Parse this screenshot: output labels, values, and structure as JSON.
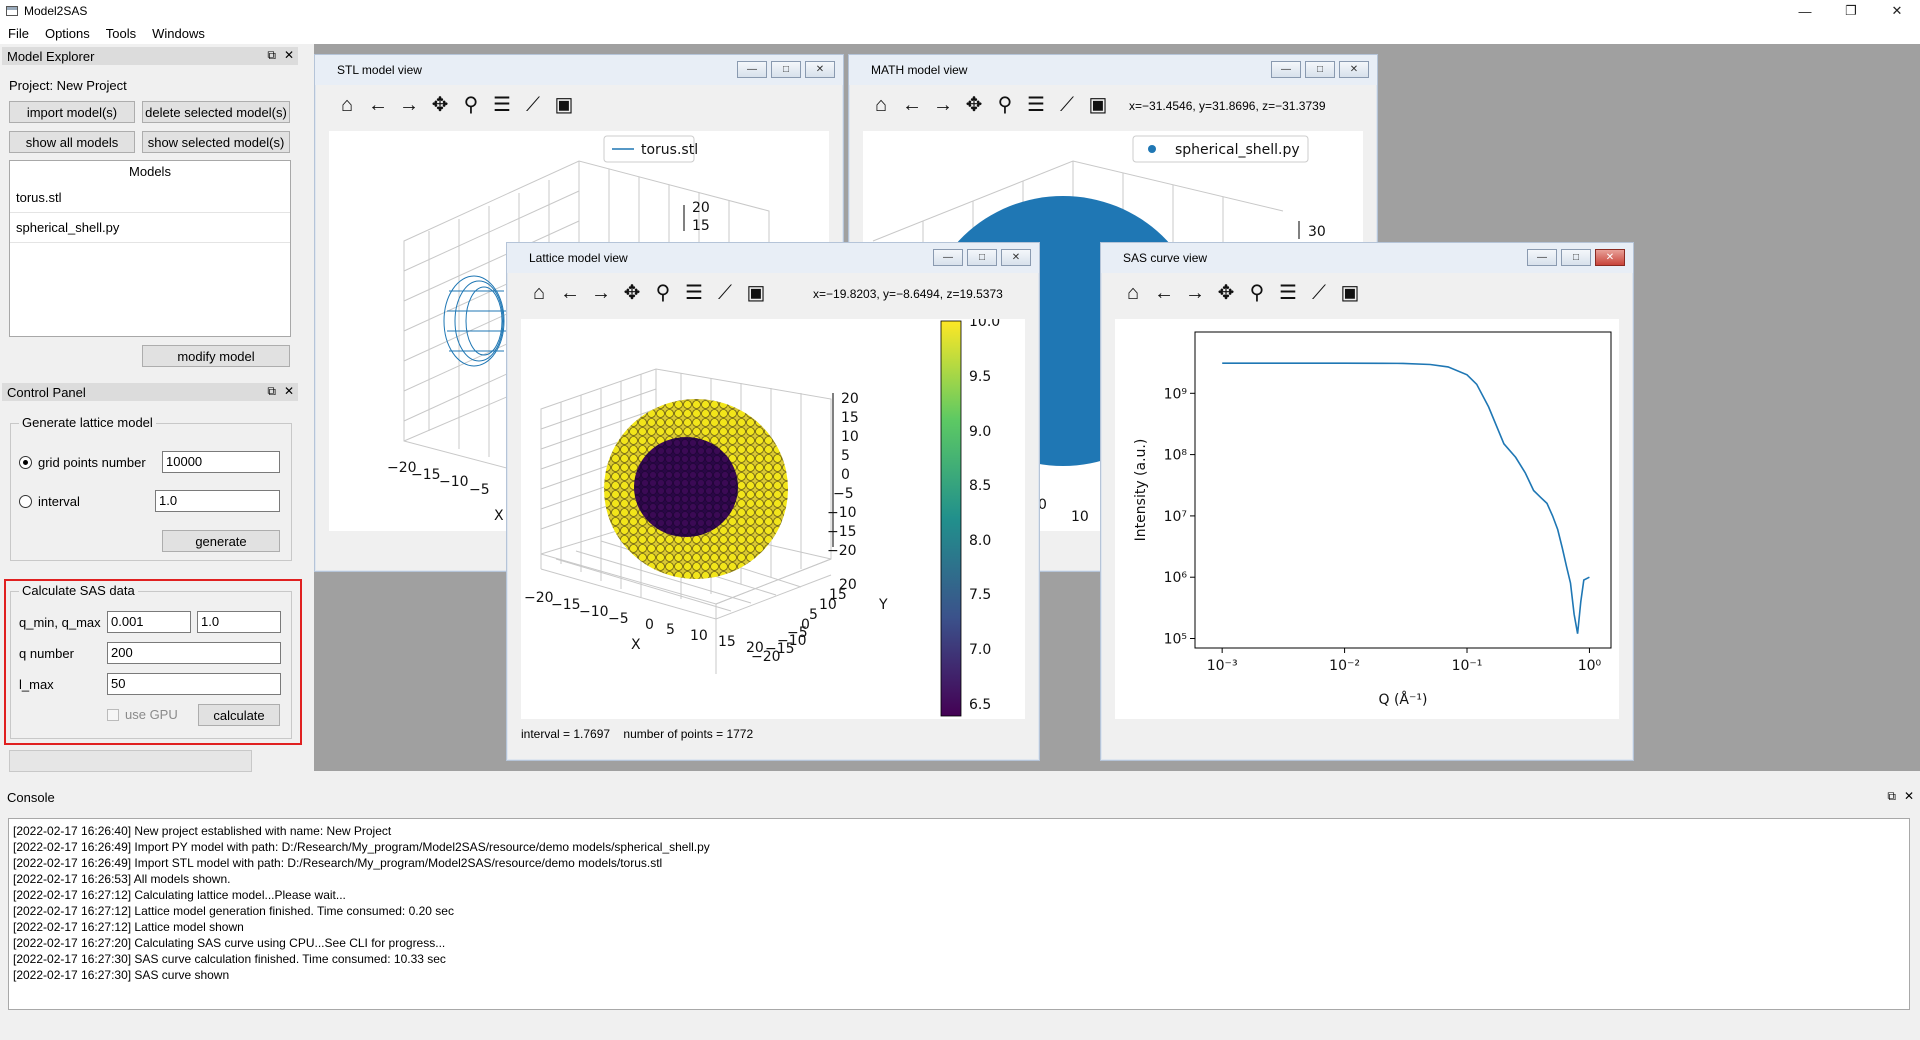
{
  "app": {
    "title": "Model2SAS",
    "minimize": "—",
    "restore": "❐",
    "close": "✕"
  },
  "menu": [
    "File",
    "Options",
    "Tools",
    "Windows"
  ],
  "model_explorer": {
    "title": "Model Explorer",
    "project_label": "Project: New Project",
    "import_button": "import model(s)",
    "delete_button": "delete selected model(s)",
    "show_all_button": "show all models",
    "show_selected_button": "show selected model(s)",
    "models_header": "Models",
    "models": [
      "torus.stl",
      "spherical_shell.py"
    ],
    "modify_button": "modify model"
  },
  "control_panel": {
    "title": "Control Panel",
    "lattice_group": "Generate lattice model",
    "grid_points_label": "grid points number",
    "grid_points_value": "10000",
    "interval_label": "interval",
    "interval_value": "1.0",
    "generate_button": "generate",
    "sas_group": "Calculate SAS data",
    "qminmax_label": "q_min, q_max",
    "qmin_value": "0.001",
    "qmax_value": "1.0",
    "qnumber_label": "q number",
    "qnumber_value": "200",
    "lmax_label": "l_max",
    "lmax_value": "50",
    "use_gpu_label": "use GPU",
    "calculate_button": "calculate"
  },
  "stl_view": {
    "title": "STL model view",
    "legend": "torus.stl",
    "zticks": [
      "20",
      "15"
    ],
    "xticks": [
      "−20",
      "−15",
      "−10",
      "−5"
    ],
    "xlabel": "X"
  },
  "math_view": {
    "title": "MATH model view",
    "coords": "x=−31.4546, y=31.8696, z=−31.3739",
    "legend": "spherical_shell.py",
    "zticks": [
      "30"
    ],
    "xticks": [
      "0",
      "10"
    ]
  },
  "lattice_view": {
    "title": "Lattice model view",
    "coords": "x=−19.8203, y=−8.6494, z=19.5373",
    "footer": "interval = 1.7697    number of points = 1772",
    "zticks": [
      "20",
      "15",
      "10",
      "5",
      "0",
      "−5",
      "−10",
      "−15",
      "−20"
    ],
    "xticks": [
      "−20",
      "−15",
      "−10",
      "−5",
      "0",
      "5",
      "10",
      "15",
      "20"
    ],
    "yticks": [
      "20",
      "15",
      "10",
      "5",
      "0",
      "−5",
      "−10",
      "−15",
      "−20"
    ],
    "xlabel": "X",
    "ylabel": "Y",
    "colorbar_ticks": [
      "10.0",
      "9.5",
      "9.0",
      "8.5",
      "8.0",
      "7.5",
      "7.0",
      "6.5"
    ]
  },
  "sas_view": {
    "title": "SAS curve view"
  },
  "toolbar_icons": [
    "home-icon",
    "back-arrow-icon",
    "forward-arrow-icon",
    "pan-icon",
    "zoom-icon",
    "subplots-icon",
    "axes-edit-icon",
    "save-icon"
  ],
  "colors": {
    "yellow": "#f2e51a",
    "purple": "#3b0a55",
    "blue": "#1f77b4",
    "red_highlight": "#e02020"
  },
  "chart_data": {
    "type": "line",
    "title": "",
    "xlabel": "Q (Å⁻¹)",
    "ylabel": "Intensity (a.u.)",
    "xscale": "log",
    "yscale": "log",
    "xlim": [
      0.0006,
      1.5
    ],
    "ylim": [
      70000,
      10000000000
    ],
    "xticks": [
      "10⁻³",
      "10⁻²",
      "10⁻¹",
      "10⁰"
    ],
    "yticks": [
      "10⁵",
      "10⁶",
      "10⁷",
      "10⁸",
      "10⁹"
    ],
    "series": [
      {
        "color": "#1f77b4",
        "x": [
          0.001,
          0.002,
          0.005,
          0.01,
          0.02,
          0.03,
          0.05,
          0.07,
          0.1,
          0.12,
          0.15,
          0.2,
          0.25,
          0.3,
          0.35,
          0.4,
          0.45,
          0.5,
          0.55,
          0.6,
          0.65,
          0.7,
          0.75,
          0.8,
          0.85,
          0.9,
          1.0
        ],
        "y": [
          3100000000,
          3100000000,
          3100000000,
          3100000000,
          3090000000,
          3070000000,
          2950000000,
          2700000000,
          2000000000,
          1400000000,
          600000000,
          150000000,
          90000000,
          50000000,
          26000000,
          20000000,
          16000000,
          10000000,
          6000000,
          3000000,
          1500000,
          800000,
          250000,
          120000,
          400000,
          900000,
          1000000
        ]
      }
    ]
  },
  "console": {
    "title": "Console",
    "lines": [
      "[2022-02-17 16:26:40] New project established with name: New Project",
      "[2022-02-17 16:26:49] Import PY model with path: D:/Research/My_program/Model2SAS/resource/demo models/spherical_shell.py",
      "[2022-02-17 16:26:49] Import STL model with path: D:/Research/My_program/Model2SAS/resource/demo models/torus.stl",
      "[2022-02-17 16:26:53] All models shown.",
      "[2022-02-17 16:27:12] Calculating lattice model...Please wait...",
      "[2022-02-17 16:27:12] Lattice model generation finished. Time consumed: 0.20 sec",
      "[2022-02-17 16:27:12] Lattice model shown",
      "[2022-02-17 16:27:20] Calculating SAS curve using CPU...See CLI for progress...",
      "[2022-02-17 16:27:30] SAS curve calculation finished. Time consumed: 10.33 sec",
      "[2022-02-17 16:27:30] SAS curve shown"
    ]
  }
}
